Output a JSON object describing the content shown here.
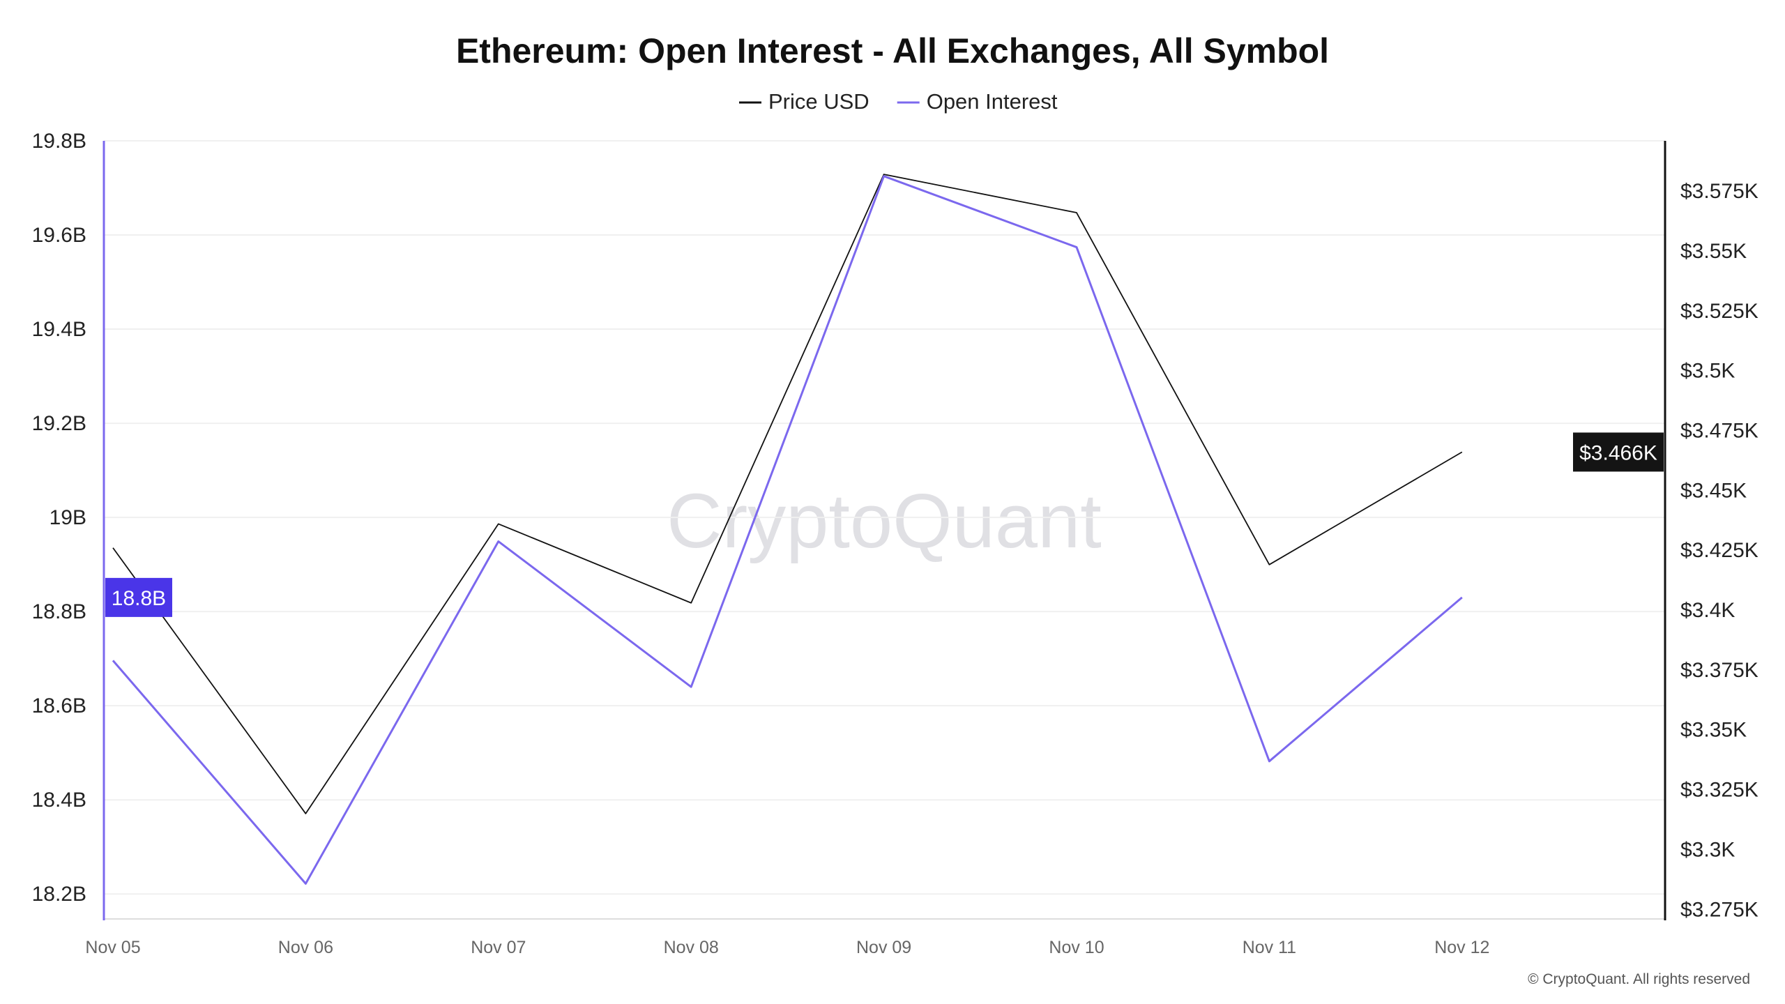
{
  "chart_data": {
    "type": "line",
    "title": "Ethereum: Open Interest - All Exchanges, All Symbol",
    "categories": [
      "Nov 05",
      "Nov 06",
      "Nov 07",
      "Nov 08",
      "Nov 09",
      "Nov 10",
      "Nov 11",
      "Nov 12"
    ],
    "series": [
      {
        "name": "Price USD",
        "axis": "right",
        "color": "#111111",
        "values": [
          3426,
          3315,
          3436,
          3403,
          3582,
          3566,
          3419,
          3466
        ]
      },
      {
        "name": "Open Interest",
        "axis": "left",
        "color": "#7b68ee",
        "values": [
          18696000000.0,
          18222000000.0,
          18949000000.0,
          18640000000.0,
          19725000000.0,
          19574000000.0,
          18482000000.0,
          18830000000.0
        ]
      }
    ],
    "left_axis": {
      "ylim": [
        18147000000.0,
        19800000000.0
      ],
      "ticks": [
        18200000000.0,
        18400000000.0,
        18600000000.0,
        18800000000.0,
        19000000000.0,
        19200000000.0,
        19400000000.0,
        19600000000.0,
        19800000000.0
      ],
      "tick_labels": [
        "18.2B",
        "18.4B",
        "18.6B",
        "18.8B",
        "19B",
        "19.2B",
        "19.4B",
        "19.6B",
        "19.8B"
      ],
      "current_label": "18.8B",
      "color": "#7b68ee",
      "badge_color": "#4a35e8"
    },
    "right_axis": {
      "ylim": [
        3271,
        3596
      ],
      "ticks": [
        3275,
        3300,
        3325,
        3350,
        3375,
        3400,
        3425,
        3450,
        3475,
        3500,
        3525,
        3550,
        3575
      ],
      "tick_labels": [
        "$3.275K",
        "$3.3K",
        "$3.325K",
        "$3.35K",
        "$3.375K",
        "$3.4K",
        "$3.425K",
        "$3.45K",
        "$3.475K",
        "$3.5K",
        "$3.525K",
        "$3.55K",
        "$3.575K"
      ],
      "current_label": "$3.466K",
      "color": "#111111"
    },
    "grid": true,
    "legend_position": "top-center",
    "watermark": "CryptoQuant",
    "copyright": "© CryptoQuant. All rights reserved"
  }
}
